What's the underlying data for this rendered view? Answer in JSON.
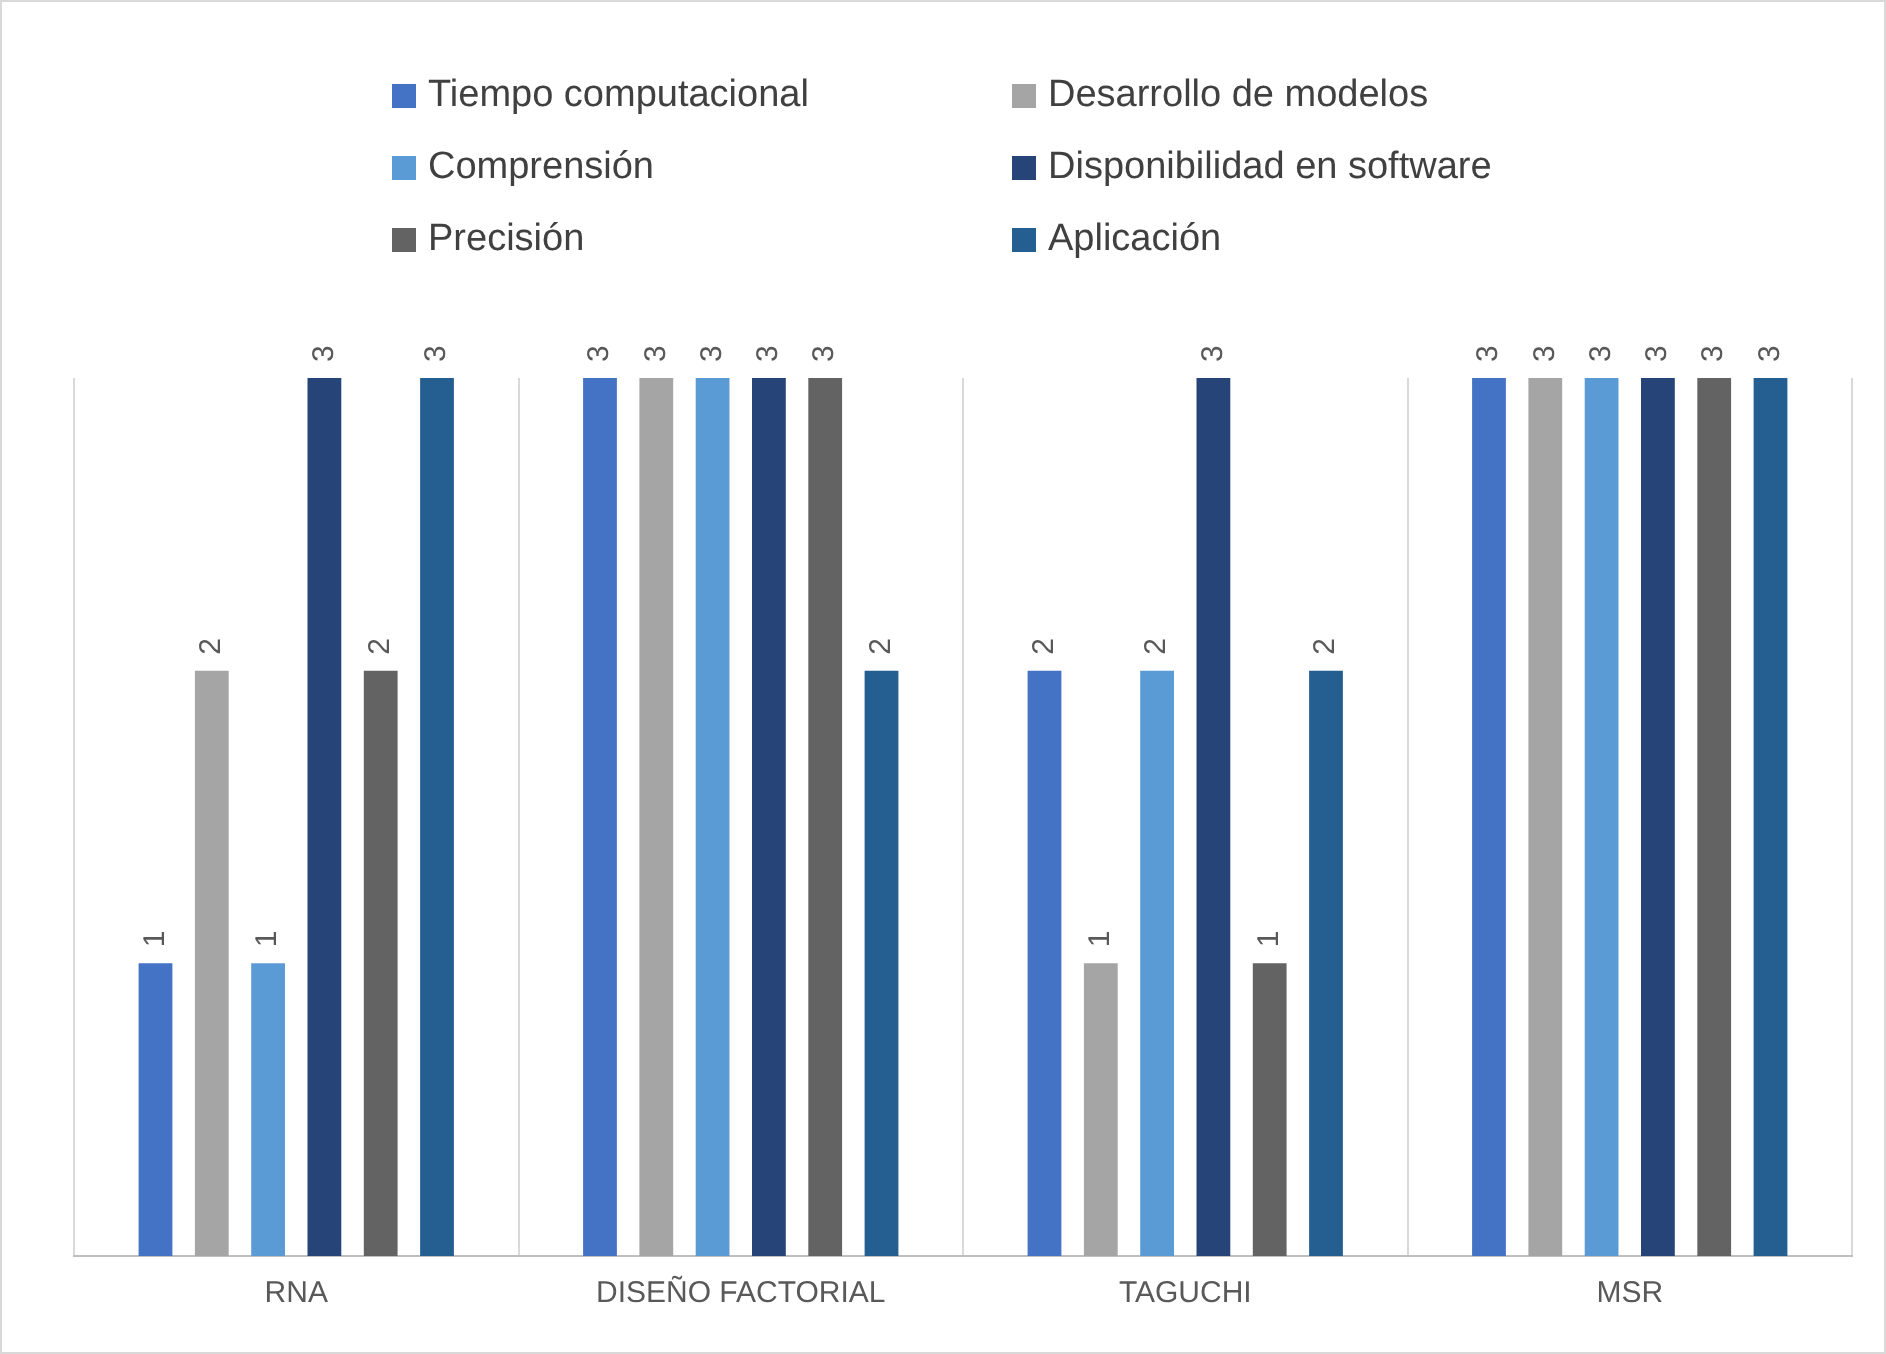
{
  "chart_data": {
    "type": "bar",
    "categories": [
      "RNA",
      "DISEÑO FACTORIAL",
      "TAGUCHI",
      "MSR"
    ],
    "series": [
      {
        "name": "Tiempo computacional",
        "color": "#4472c4",
        "values": [
          1,
          3,
          2,
          3
        ]
      },
      {
        "name": "Desarrollo de modelos",
        "color": "#a5a5a5",
        "values": [
          2,
          3,
          1,
          3
        ]
      },
      {
        "name": "Comprensión",
        "color": "#5b9bd5",
        "values": [
          1,
          3,
          2,
          3
        ]
      },
      {
        "name": "Disponibilidad en software",
        "color": "#264478",
        "values": [
          3,
          3,
          3,
          3
        ]
      },
      {
        "name": "Precisión",
        "color": "#636363",
        "values": [
          2,
          3,
          1,
          3
        ]
      },
      {
        "name": "Aplicación",
        "color": "#255e91",
        "values": [
          3,
          2,
          2,
          3
        ]
      }
    ],
    "ylim": [
      0,
      3
    ],
    "data_labels": true,
    "grid": "x",
    "legend": "top"
  }
}
